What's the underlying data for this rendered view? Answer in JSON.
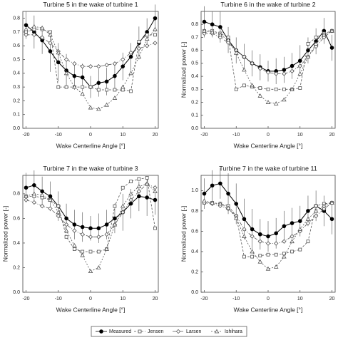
{
  "chart_data": [
    {
      "type": "line",
      "title": "Turbine 5 in the wake of turbine 1",
      "x_label": "Wake Centerline Angle [°]",
      "x": [
        -20,
        -17.5,
        -15,
        -12.5,
        -10,
        -7.5,
        -5,
        -2.5,
        0,
        2.5,
        5,
        7.5,
        10,
        12.5,
        15,
        17.5,
        20
      ],
      "xlim": [
        -21,
        21
      ],
      "xticks": [
        -20,
        -10,
        0,
        10,
        20
      ],
      "ylim": [
        0,
        0.85
      ],
      "yticks": [
        {
          "value": 0,
          "label": "0.0"
        },
        0.1,
        0.2,
        0.3,
        0.4,
        0.5,
        0.6,
        0.7,
        0.8
      ],
      "series": [
        {
          "name": "Measured",
          "color": "#000000",
          "marker": "circle",
          "dash": "none",
          "values": [
            0.75,
            0.7,
            0.64,
            0.56,
            0.48,
            0.42,
            0.38,
            0.37,
            0.3,
            0.33,
            0.34,
            0.38,
            0.45,
            0.52,
            0.62,
            0.7,
            0.8
          ],
          "errors": [
            0.1,
            0.12,
            0.1,
            0.15,
            0.14,
            0.12,
            0.1,
            0.1,
            0.08,
            0.1,
            0.1,
            0.1,
            0.1,
            0.1,
            0.12,
            0.1,
            0.1
          ]
        },
        {
          "name": "Jensen",
          "color": "#555555",
          "marker": "square",
          "dash": "3,2",
          "values": [
            0.7,
            0.72,
            0.72,
            0.7,
            0.3,
            0.3,
            0.3,
            0.3,
            0.3,
            0.28,
            0.28,
            0.28,
            0.28,
            0.27,
            0.63,
            0.68,
            0.68
          ]
        },
        {
          "name": "Larsen",
          "color": "#555555",
          "marker": "diamond",
          "dash": "5,2,1,2",
          "values": [
            0.68,
            0.68,
            0.66,
            0.62,
            0.56,
            0.5,
            0.47,
            0.45,
            0.45,
            0.45,
            0.46,
            0.47,
            0.5,
            0.55,
            0.58,
            0.6,
            0.62
          ]
        },
        {
          "name": "Ishihara",
          "color": "#555555",
          "marker": "triangle",
          "dash": "2,2",
          "values": [
            0.72,
            0.74,
            0.73,
            0.68,
            0.55,
            0.4,
            0.3,
            0.25,
            0.15,
            0.14,
            0.17,
            0.22,
            0.3,
            0.4,
            0.52,
            0.65,
            0.72
          ]
        }
      ]
    },
    {
      "type": "line",
      "title": "Turbine 6 in the wake of turbine 2",
      "x_label": "Wake Centerline Angle [°]",
      "y_label": "Normalized power [-]",
      "x": [
        -20,
        -17.5,
        -15,
        -12.5,
        -10,
        -7.5,
        -5,
        -2.5,
        0,
        2.5,
        5,
        7.5,
        10,
        12.5,
        15,
        17.5,
        20
      ],
      "xlim": [
        -21,
        21
      ],
      "xticks": [
        -20,
        -10,
        0,
        10,
        20
      ],
      "ylim": [
        0,
        0.9
      ],
      "yticks": [
        {
          "value": 0,
          "label": "0.0"
        },
        0.1,
        0.2,
        0.3,
        0.4,
        0.5,
        0.6,
        0.7,
        0.8
      ],
      "series": [
        {
          "name": "Measured",
          "color": "#000000",
          "marker": "circle",
          "dash": "none",
          "values": [
            0.82,
            0.8,
            0.78,
            0.68,
            0.6,
            0.55,
            0.5,
            0.47,
            0.44,
            0.44,
            0.45,
            0.48,
            0.52,
            0.6,
            0.67,
            0.75,
            0.62
          ],
          "errors": [
            0.12,
            0.1,
            0.12,
            0.1,
            0.1,
            0.1,
            0.1,
            0.1,
            0.08,
            0.1,
            0.1,
            0.1,
            0.12,
            0.1,
            0.1,
            0.1,
            0.1
          ]
        },
        {
          "name": "Jensen",
          "color": "#555555",
          "marker": "square",
          "dash": "3,2",
          "values": [
            0.75,
            0.75,
            0.73,
            0.7,
            0.3,
            0.33,
            0.32,
            0.31,
            0.3,
            0.3,
            0.3,
            0.3,
            0.31,
            0.65,
            0.7,
            0.73,
            0.75
          ]
        },
        {
          "name": "Larsen",
          "color": "#555555",
          "marker": "diamond",
          "dash": "5,2,1,2",
          "values": [
            0.73,
            0.73,
            0.7,
            0.66,
            0.6,
            0.55,
            0.5,
            0.46,
            0.43,
            0.42,
            0.42,
            0.44,
            0.48,
            0.55,
            0.63,
            0.7,
            0.75
          ]
        },
        {
          "name": "Ishihara",
          "color": "#555555",
          "marker": "triangle",
          "dash": "2,2",
          "values": [
            0.75,
            0.74,
            0.72,
            0.68,
            0.58,
            0.45,
            0.33,
            0.25,
            0.2,
            0.19,
            0.22,
            0.3,
            0.42,
            0.55,
            0.65,
            0.72,
            0.75
          ]
        }
      ]
    },
    {
      "type": "line",
      "title": "Turbine 7 in the wake of turbine 3",
      "x_label": "Wake Centerline Angle [°]",
      "y_label": "Normalized power [-]",
      "x": [
        -20,
        -17.5,
        -15,
        -12.5,
        -10,
        -7.5,
        -5,
        -2.5,
        0,
        2.5,
        5,
        7.5,
        10,
        12.5,
        15,
        17.5,
        20
      ],
      "xlim": [
        -21,
        21
      ],
      "xticks": [
        -20,
        -10,
        0,
        10,
        20
      ],
      "ylim": [
        0,
        0.95
      ],
      "yticks": [
        {
          "value": 0,
          "label": "0.0"
        },
        0.2,
        0.4,
        0.6,
        0.8
      ],
      "series": [
        {
          "name": "Measured",
          "color": "#000000",
          "marker": "circle",
          "dash": "none",
          "values": [
            0.85,
            0.87,
            0.82,
            0.78,
            0.7,
            0.6,
            0.55,
            0.53,
            0.52,
            0.52,
            0.55,
            0.6,
            0.65,
            0.72,
            0.78,
            0.77,
            0.75
          ],
          "errors": [
            0.12,
            0.12,
            0.12,
            0.12,
            0.12,
            0.12,
            0.12,
            0.12,
            0.1,
            0.12,
            0.12,
            0.12,
            0.15,
            0.12,
            0.12,
            0.15,
            0.12
          ]
        },
        {
          "name": "Jensen",
          "color": "#555555",
          "marker": "square",
          "dash": "3,2",
          "values": [
            0.78,
            0.78,
            0.77,
            0.75,
            0.7,
            0.45,
            0.35,
            0.33,
            0.33,
            0.33,
            0.35,
            0.7,
            0.85,
            0.9,
            0.92,
            0.93,
            0.52
          ]
        },
        {
          "name": "Larsen",
          "color": "#555555",
          "marker": "diamond",
          "dash": "5,2,1,2",
          "values": [
            0.75,
            0.73,
            0.7,
            0.68,
            0.62,
            0.55,
            0.5,
            0.47,
            0.45,
            0.45,
            0.47,
            0.55,
            0.65,
            0.75,
            0.82,
            0.88,
            0.85
          ]
        },
        {
          "name": "Ishihara",
          "color": "#555555",
          "marker": "triangle",
          "dash": "2,2",
          "values": [
            0.78,
            0.8,
            0.79,
            0.75,
            0.65,
            0.5,
            0.38,
            0.3,
            0.17,
            0.2,
            0.35,
            0.55,
            0.7,
            0.8,
            0.86,
            0.88,
            0.82
          ]
        }
      ]
    },
    {
      "type": "line",
      "title": "Turbine 7 in the wake of turbine 11",
      "x_label": "Wake Centerline Angle [°]",
      "y_label": "Normalized power [-]",
      "x": [
        -20,
        -17.5,
        -15,
        -12.5,
        -10,
        -7.5,
        -5,
        -2.5,
        0,
        2.5,
        5,
        7.5,
        10,
        12.5,
        15,
        17.5,
        20
      ],
      "xlim": [
        -21,
        21
      ],
      "xticks": [
        -20,
        -10,
        0,
        10,
        20
      ],
      "ylim": [
        0,
        1.15
      ],
      "yticks": [
        {
          "value": 0,
          "label": "0.0"
        },
        0.2,
        0.4,
        0.6,
        0.8,
        {
          "value": 1,
          "label": "1.0"
        }
      ],
      "series": [
        {
          "name": "Measured",
          "color": "#000000",
          "marker": "circle",
          "dash": "none",
          "values": [
            0.97,
            1.05,
            1.07,
            0.97,
            0.87,
            0.72,
            0.62,
            0.57,
            0.55,
            0.58,
            0.65,
            0.68,
            0.7,
            0.8,
            0.85,
            0.8,
            0.72
          ],
          "errors": [
            0.15,
            0.15,
            0.15,
            0.2,
            0.2,
            0.2,
            0.2,
            0.15,
            0.15,
            0.15,
            0.15,
            0.15,
            0.15,
            0.15,
            0.15,
            0.15,
            0.15
          ]
        },
        {
          "name": "Jensen",
          "color": "#555555",
          "marker": "square",
          "dash": "3,2",
          "values": [
            0.88,
            0.88,
            0.87,
            0.85,
            0.75,
            0.35,
            0.35,
            0.36,
            0.37,
            0.37,
            0.38,
            0.4,
            0.42,
            0.5,
            0.85,
            0.87,
            0.88
          ]
        },
        {
          "name": "Larsen",
          "color": "#555555",
          "marker": "diamond",
          "dash": "5,2,1,2",
          "values": [
            0.88,
            0.87,
            0.85,
            0.82,
            0.75,
            0.62,
            0.55,
            0.5,
            0.48,
            0.48,
            0.5,
            0.55,
            0.6,
            0.68,
            0.75,
            0.82,
            0.88
          ]
        },
        {
          "name": "Ishihara",
          "color": "#555555",
          "marker": "triangle",
          "dash": "2,2",
          "values": [
            0.9,
            0.88,
            0.87,
            0.83,
            0.73,
            0.55,
            0.4,
            0.3,
            0.23,
            0.25,
            0.35,
            0.5,
            0.62,
            0.72,
            0.8,
            0.85,
            0.88
          ]
        }
      ]
    }
  ]
}
